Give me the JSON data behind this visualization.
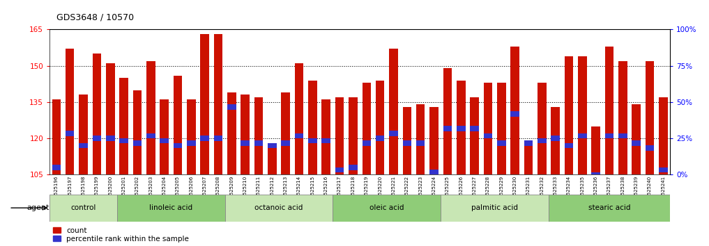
{
  "title": "GDS3648 / 10570",
  "samples": [
    "GSM525196",
    "GSM525197",
    "GSM525198",
    "GSM525199",
    "GSM525200",
    "GSM525201",
    "GSM525202",
    "GSM525203",
    "GSM525204",
    "GSM525205",
    "GSM525206",
    "GSM525207",
    "GSM525208",
    "GSM525209",
    "GSM525210",
    "GSM525211",
    "GSM525212",
    "GSM525213",
    "GSM525214",
    "GSM525215",
    "GSM525216",
    "GSM525217",
    "GSM525218",
    "GSM525219",
    "GSM525220",
    "GSM525221",
    "GSM525222",
    "GSM525223",
    "GSM525224",
    "GSM525225",
    "GSM525226",
    "GSM525227",
    "GSM525228",
    "GSM525229",
    "GSM525230",
    "GSM525231",
    "GSM525232",
    "GSM525233",
    "GSM525234",
    "GSM525235",
    "GSM525236",
    "GSM525237",
    "GSM525238",
    "GSM525239",
    "GSM525240",
    "GSM525241"
  ],
  "bar_values": [
    136,
    157,
    138,
    155,
    151,
    145,
    140,
    152,
    136,
    146,
    136,
    163,
    163,
    139,
    138,
    137,
    118,
    139,
    151,
    144,
    136,
    137,
    137,
    143,
    144,
    157,
    133,
    134,
    133,
    149,
    144,
    137,
    143,
    143,
    158,
    118,
    143,
    133,
    154,
    154,
    125,
    158,
    152,
    134,
    152,
    137
  ],
  "blue_values": [
    108,
    122,
    117,
    120,
    120,
    119,
    118,
    121,
    119,
    117,
    118,
    120,
    120,
    133,
    118,
    118,
    117,
    118,
    121,
    119,
    119,
    107,
    108,
    118,
    120,
    122,
    118,
    118,
    106,
    124,
    124,
    124,
    121,
    118,
    130,
    118,
    119,
    120,
    117,
    121,
    105,
    121,
    121,
    118,
    116,
    107
  ],
  "groups": [
    {
      "label": "control",
      "start": 0,
      "end": 4,
      "color": "#c8e6b4"
    },
    {
      "label": "linoleic acid",
      "start": 5,
      "end": 12,
      "color": "#8fcc78"
    },
    {
      "label": "octanoic acid",
      "start": 13,
      "end": 20,
      "color": "#c8e6b4"
    },
    {
      "label": "oleic acid",
      "start": 21,
      "end": 28,
      "color": "#8fcc78"
    },
    {
      "label": "palmitic acid",
      "start": 29,
      "end": 36,
      "color": "#c8e6b4"
    },
    {
      "label": "stearic acid",
      "start": 37,
      "end": 45,
      "color": "#8fcc78"
    }
  ],
  "bar_color": "#cc1100",
  "blue_color": "#3333cc",
  "ylim_left": [
    105,
    165
  ],
  "ylim_right": [
    0,
    100
  ],
  "yticks_left": [
    105,
    120,
    135,
    150,
    165
  ],
  "yticks_right": [
    0,
    25,
    50,
    75,
    100
  ],
  "ytick_labels_right": [
    "0%",
    "25%",
    "50%",
    "75%",
    "100%"
  ],
  "hgrid_vals": [
    120,
    135,
    150
  ],
  "agent_label": "agent",
  "legend_count": "count",
  "legend_pct": "percentile rank within the sample"
}
